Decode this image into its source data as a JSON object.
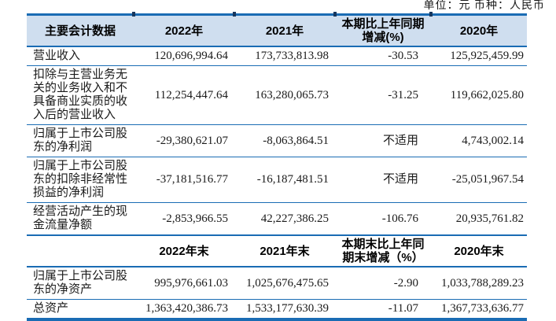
{
  "page": {
    "unit_note": "单位：元  币种：人民币"
  },
  "colors": {
    "line_blue": "#1a6cb4",
    "header_fill": "#cfdeef",
    "tick_navy": "#17365d",
    "text": "#1a1a1a"
  },
  "table": {
    "header_period": {
      "col_label": "主要会计数据",
      "y2022": "2022年",
      "y2021": "2021年",
      "change": "本期比上年同期增减(%)",
      "y2020": "2020年"
    },
    "period_rows": [
      {
        "label": "营业收入",
        "y2022": "120,696,994.64",
        "y2021": "173,733,813.98",
        "change": "-30.53",
        "y2020": "125,925,459.99"
      },
      {
        "label": "扣除与主营业务无关的业务收入和不具备商业实质的收入后的营业收入",
        "y2022": "112,254,447.64",
        "y2021": "163,280,065.73",
        "change": "-31.25",
        "y2020": "119,662,025.80"
      },
      {
        "label": "归属于上市公司股东的净利润",
        "y2022": "-29,380,621.07",
        "y2021": "-8,063,864.51",
        "change": "不适用",
        "y2020": "4,743,002.14"
      },
      {
        "label": "归属于上市公司股东的扣除非经常性损益的净利润",
        "y2022": "-37,181,516.77",
        "y2021": "-16,187,481.51",
        "change": "不适用",
        "y2020": "-25,051,967.54"
      },
      {
        "label": "经营活动产生的现金流量净额",
        "y2022": "-2,853,966.55",
        "y2021": "42,227,386.25",
        "change": "-106.76",
        "y2020": "20,935,761.82"
      }
    ],
    "header_eop": {
      "col_label": "",
      "y2022": "2022年末",
      "y2021": "2021年末",
      "change": "本期末比上年同期末增减（%）",
      "y2020": "2020年末"
    },
    "eop_rows": [
      {
        "label": "归属于上市公司股东的净资产",
        "y2022": "995,976,661.03",
        "y2021": "1,025,676,475.65",
        "change": "-2.90",
        "y2020": "1,033,788,289.23"
      },
      {
        "label": "总资产",
        "y2022": "1,363,420,386.73",
        "y2021": "1,533,177,630.39",
        "change": "-11.07",
        "y2020": "1,367,733,636.77"
      }
    ]
  }
}
